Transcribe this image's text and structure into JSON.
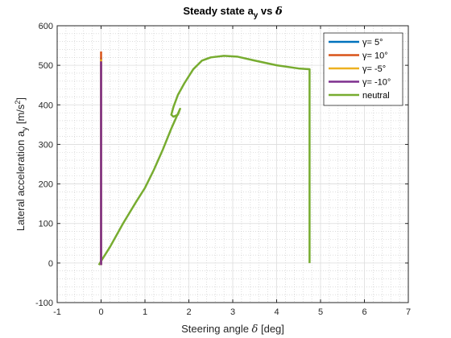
{
  "chart_data": {
    "type": "line",
    "title": "Steady state a_y vs δ",
    "title_parts": {
      "main": "Steady state a",
      "sub": "y",
      "rest": " vs ",
      "greek": "δ"
    },
    "xlabel": "Steering angle δ [deg]",
    "xlabel_parts": {
      "main": "Steering angle ",
      "greek": "δ",
      "rest": " [deg]"
    },
    "ylabel": "Lateral acceleration a_y [m/s^2]",
    "ylabel_parts": {
      "main": "Lateral acceleration a",
      "sub": "y",
      "rest": "  [m/s",
      "sup": "2",
      "end": "]"
    },
    "xlim": [
      -1,
      7
    ],
    "ylim": [
      -100,
      600
    ],
    "xticks": [
      -1,
      0,
      1,
      2,
      3,
      4,
      5,
      6,
      7
    ],
    "yticks": [
      -100,
      0,
      100,
      200,
      300,
      400,
      500,
      600
    ],
    "grid": true,
    "minor_grid": true,
    "legend_position": "top-right",
    "series": [
      {
        "name": "γ= 5°",
        "color": "#0072BD",
        "x": [
          0.0,
          0.0,
          0.0,
          0.0
        ],
        "y": [
          -5,
          150,
          350,
          520
        ]
      },
      {
        "name": "γ= 10°",
        "color": "#D95319",
        "x": [
          0.0,
          0.0,
          0.0,
          0.0
        ],
        "y": [
          -5,
          150,
          350,
          535
        ]
      },
      {
        "name": "γ= -5°",
        "color": "#EDB120",
        "x": [
          0.0,
          0.0,
          0.0,
          0.0
        ],
        "y": [
          -5,
          150,
          350,
          515
        ]
      },
      {
        "name": "γ= -10°",
        "color": "#7E2F8E",
        "x": [
          0.0,
          0.0,
          0.0,
          0.0
        ],
        "y": [
          -5,
          150,
          350,
          510
        ]
      },
      {
        "name": "neutral",
        "color": "#77AC30",
        "x": [
          -0.05,
          0.0,
          0.2,
          0.5,
          0.8,
          1.0,
          1.2,
          1.4,
          1.6,
          1.8,
          1.75,
          1.65,
          1.6,
          1.65,
          1.75,
          1.9,
          2.1,
          2.3,
          2.5,
          2.8,
          3.1,
          3.5,
          4.0,
          4.5,
          4.75,
          4.75,
          4.75
        ],
        "y": [
          -5,
          5,
          40,
          100,
          155,
          190,
          235,
          285,
          340,
          390,
          375,
          370,
          375,
          395,
          425,
          455,
          490,
          512,
          520,
          524,
          522,
          512,
          500,
          492,
          490,
          200,
          0
        ]
      }
    ]
  }
}
